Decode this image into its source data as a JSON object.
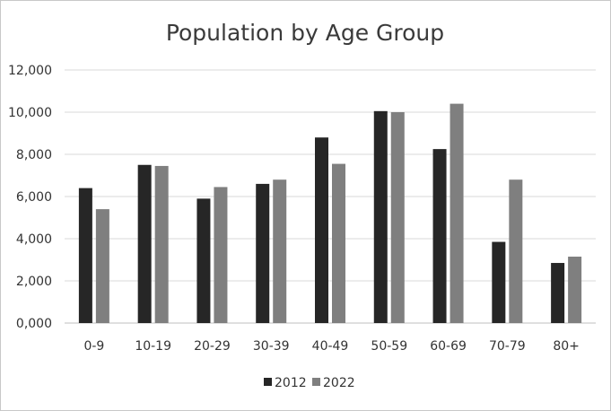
{
  "chart_data": {
    "type": "bar",
    "title": "Population by Age Group",
    "categories": [
      "0-9",
      "10-19",
      "20-29",
      "30-39",
      "40-49",
      "50-59",
      "60-69",
      "70-79",
      "80+"
    ],
    "series": [
      {
        "name": "2012",
        "color": "#262626",
        "values": [
          6400,
          7500,
          5900,
          6600,
          8800,
          10050,
          8250,
          3850,
          2850
        ]
      },
      {
        "name": "2022",
        "color": "#7f7f7f",
        "values": [
          5400,
          7450,
          6450,
          6800,
          7550,
          10000,
          10400,
          6800,
          3150
        ]
      }
    ],
    "ylim": [
      0,
      12000
    ],
    "yticks": [
      "0,000",
      "2,000",
      "4,000",
      "6,000",
      "8,000",
      "10,000",
      "12,000"
    ],
    "grid": true,
    "legend_position": "bottom",
    "xlabel": "",
    "ylabel": ""
  }
}
